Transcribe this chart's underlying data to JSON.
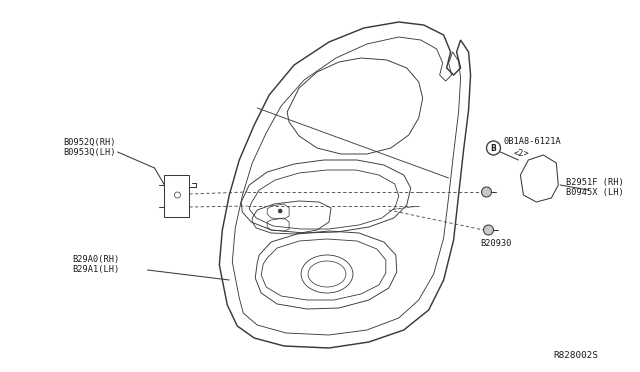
{
  "bg_color": "#ffffff",
  "diagram_ref": "R828002S",
  "labels": {
    "top_left_1": "B0952Q(RH)",
    "top_left_2": "B0953Q(LH)",
    "bottom_left_1": "B29A0(RH)",
    "bottom_left_2": "B29A1(LH)",
    "bolt_label_1": "0B1A8-6121A",
    "bolt_label_2": "<2>",
    "right_panel_1": "B2951F (RH)",
    "right_panel_2": "B0945X (LH)",
    "bottom_screw": "B20930",
    "diagram_ref": "R828002S"
  },
  "colors": {
    "line": "#3a3a3a",
    "dashed": "#555555",
    "text": "#1a1a1a",
    "background": "#ffffff"
  },
  "lw": 0.75,
  "fs": 6.2
}
